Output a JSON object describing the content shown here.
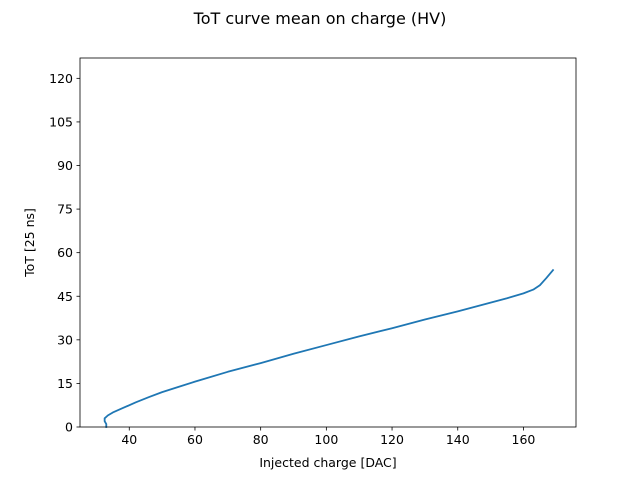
{
  "chart_data": {
    "type": "line",
    "title": "ToT curve mean on charge (HV)",
    "xlabel": "Injected charge [DAC]",
    "ylabel": "ToT [25 ns]",
    "xlim": [
      25,
      176
    ],
    "ylim": [
      0,
      127
    ],
    "xticks": [
      40,
      60,
      80,
      100,
      120,
      140,
      160
    ],
    "yticks": [
      0,
      15,
      30,
      45,
      60,
      75,
      90,
      105,
      120
    ],
    "grid": false,
    "series": [
      {
        "color": "#1f77b4",
        "x": [
          33,
          33,
          32.5,
          32.5,
          33.5,
          35,
          38,
          42,
          46,
          50,
          55,
          60,
          70,
          80,
          90,
          100,
          110,
          120,
          130,
          140,
          150,
          155,
          160,
          163,
          165,
          167,
          169
        ],
        "y": [
          0,
          1,
          2,
          3,
          4,
          5,
          6.5,
          8.5,
          10.3,
          12,
          13.8,
          15.6,
          19,
          22,
          25.2,
          28.2,
          31.2,
          34,
          37,
          39.8,
          42.8,
          44.3,
          46,
          47.3,
          48.8,
          51.3,
          54
        ]
      }
    ]
  }
}
